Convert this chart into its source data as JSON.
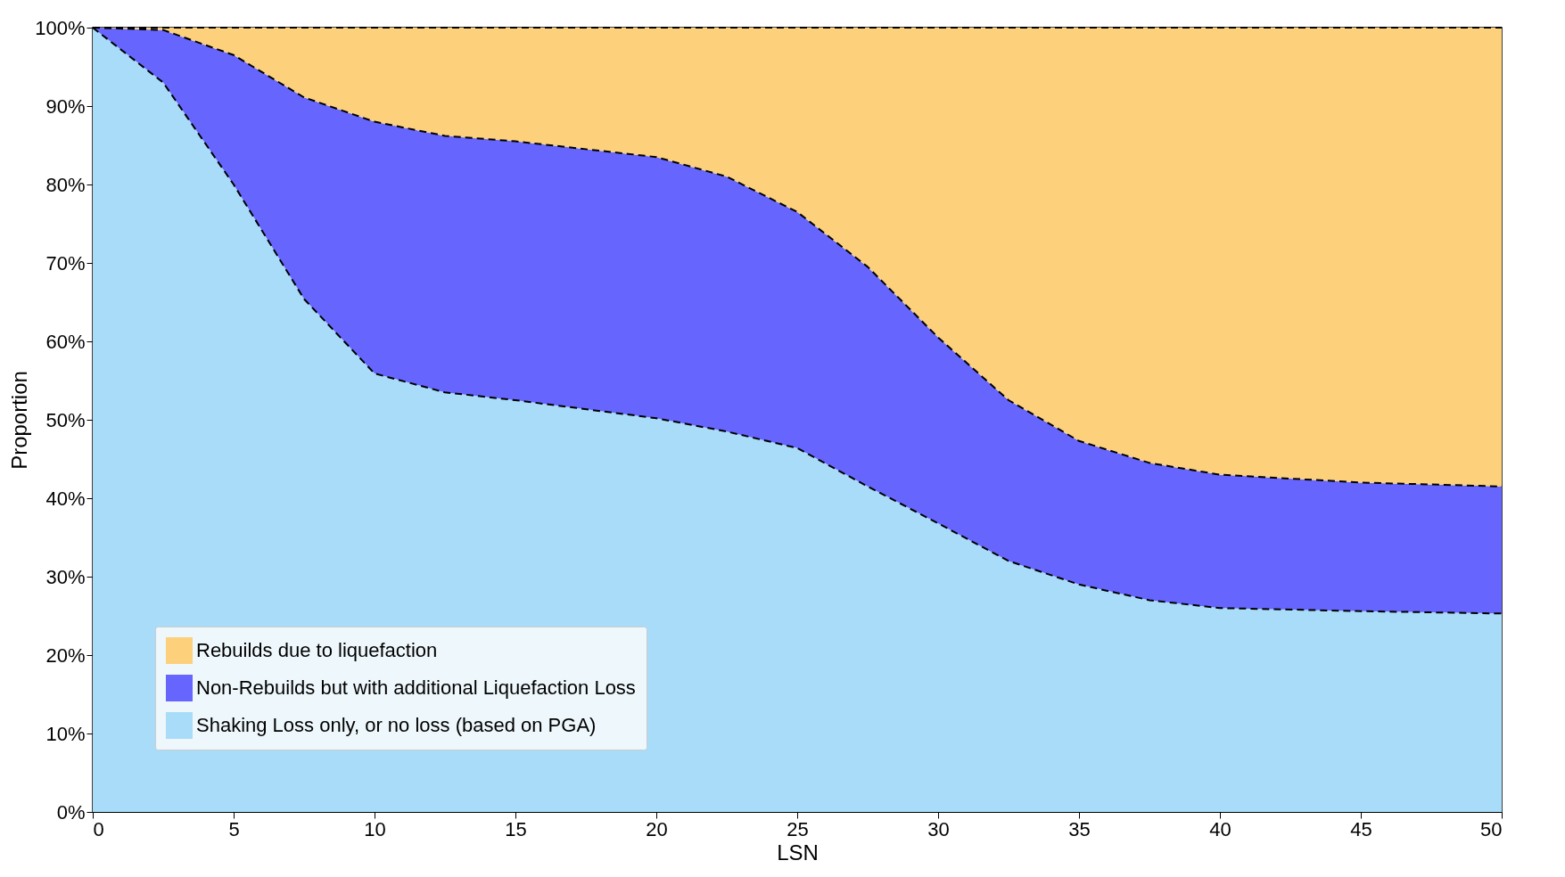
{
  "chart_data": {
    "type": "area",
    "stacked": true,
    "xlabel": "LSN",
    "ylabel": "Proportion",
    "x": [
      0,
      2.5,
      5,
      7.5,
      10,
      12.5,
      15,
      20,
      22.5,
      25,
      27.5,
      30,
      32.5,
      35,
      37.5,
      40,
      45,
      50
    ],
    "series": [
      {
        "name": "Shaking Loss only, or no loss (based on PGA)",
        "color": "#a8dcf8",
        "values": [
          100,
          93,
          80,
          65.4,
          55.9,
          53.5,
          52.5,
          50.2,
          48.5,
          46.4,
          41.5,
          36.8,
          32,
          29,
          27,
          26,
          25.6,
          25.3
        ]
      },
      {
        "name": "Non-Rebuilds but with additional Liquefaction Loss",
        "color": "#6666ff",
        "values": [
          0,
          6.7,
          16.5,
          25.7,
          32.1,
          32.7,
          33,
          33.3,
          32.5,
          30.1,
          28,
          23.7,
          20.5,
          18.3,
          17.5,
          17,
          16.4,
          16.2
        ]
      },
      {
        "name": "Rebuilds due to liquefaction",
        "color": "#fdd07c",
        "values": [
          0,
          0.3,
          3.5,
          8.9,
          12,
          13.8,
          14.5,
          16.5,
          19,
          23.5,
          30.5,
          39.5,
          47.5,
          52.7,
          55.5,
          57,
          58,
          58.5
        ]
      }
    ],
    "xlim": [
      0,
      50
    ],
    "xticks": [
      0,
      5,
      10,
      15,
      20,
      25,
      30,
      35,
      40,
      45,
      50
    ],
    "ylim": [
      0,
      100
    ],
    "yticks": [
      {
        "value": 0,
        "label": "0%"
      },
      {
        "value": 10,
        "label": "10%"
      },
      {
        "value": 20,
        "label": "20%"
      },
      {
        "value": 30,
        "label": "30%"
      },
      {
        "value": 40,
        "label": "40%"
      },
      {
        "value": 50,
        "label": "50%"
      },
      {
        "value": 60,
        "label": "60%"
      },
      {
        "value": 70,
        "label": "70%"
      },
      {
        "value": 80,
        "label": "80%"
      },
      {
        "value": 90,
        "label": "90%"
      },
      {
        "value": 100,
        "label": "100%"
      }
    ],
    "line_style": "dashed",
    "grid": false,
    "legend": "bottom left"
  }
}
